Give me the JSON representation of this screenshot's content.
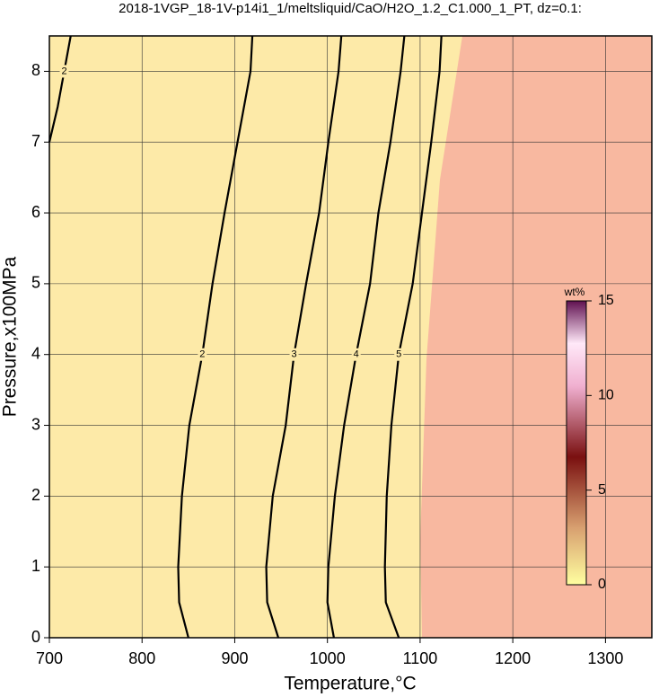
{
  "chart_data": {
    "type": "contour",
    "title": "2018-1VGP_18-1V-p14i1_1/meltsliquid/CaO/H2O_1.2_C1.000_1_PT, dz=0.1:",
    "xlabel": "Temperature,°C",
    "ylabel": "Pressure,x100MPa",
    "xlim": [
      700,
      1350
    ],
    "ylim": [
      0,
      8.5
    ],
    "xticks": [
      700,
      800,
      900,
      1000,
      1100,
      1200,
      1300
    ],
    "yticks": [
      0,
      1,
      2,
      3,
      4,
      5,
      6,
      7,
      8
    ],
    "grid": true,
    "series": [
      {
        "name": "2",
        "color": "#000000",
        "y": [
          0,
          0.5,
          1,
          2,
          3,
          4,
          5,
          6,
          7,
          8,
          8.5
        ],
        "x": [
          850,
          840,
          839,
          843,
          851,
          865,
          876,
          889,
          903,
          917,
          919
        ]
      },
      {
        "name": "2",
        "color": "#000000",
        "y": [
          7,
          7.5,
          8,
          8.5
        ],
        "x": [
          700,
          709,
          716,
          723
        ]
      },
      {
        "name": "3",
        "color": "#000000",
        "y": [
          0,
          0.5,
          1,
          2,
          3,
          4,
          5,
          6,
          7,
          8,
          8.5
        ],
        "x": [
          947,
          935,
          934,
          941,
          955,
          964,
          977,
          991,
          1001,
          1012,
          1015
        ]
      },
      {
        "name": "4",
        "color": "#000000",
        "y": [
          0,
          0.5,
          1,
          2,
          3,
          4,
          5,
          6,
          7,
          8,
          8.5
        ],
        "x": [
          1007,
          1000,
          1001,
          1008,
          1018,
          1031,
          1046,
          1055,
          1068,
          1079,
          1083
        ]
      },
      {
        "name": "5",
        "color": "#000000",
        "y": [
          0,
          0.5,
          1,
          2,
          3,
          4,
          5,
          6,
          7,
          8,
          8.5
        ],
        "x": [
          1077,
          1063,
          1062,
          1064,
          1069,
          1077,
          1092,
          1102,
          1112,
          1121,
          1123
        ]
      }
    ],
    "colorbar": {
      "label": "wt%",
      "lim": [
        0,
        15
      ],
      "ticks": [
        0,
        5,
        10,
        15
      ]
    }
  }
}
